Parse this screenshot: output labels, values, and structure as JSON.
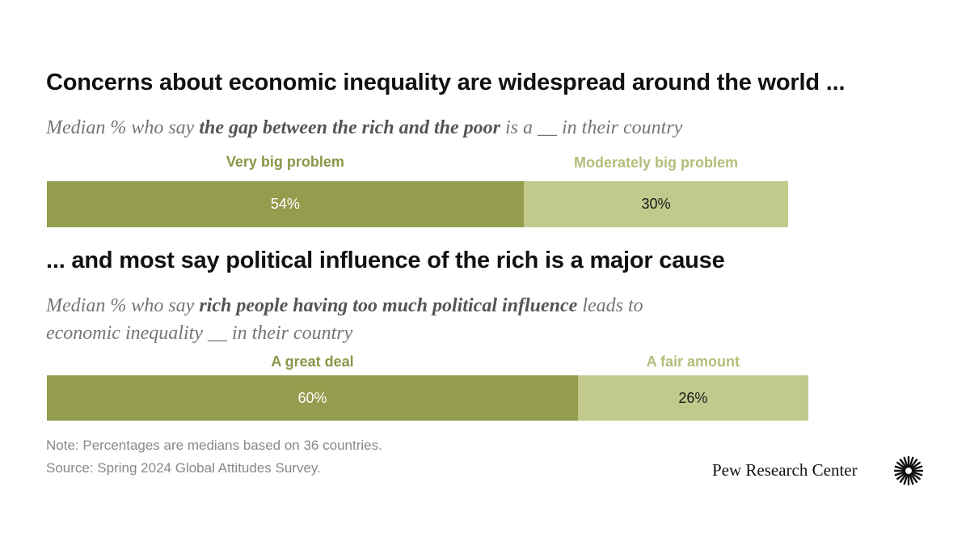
{
  "chart_data": [
    {
      "type": "bar",
      "orientation": "horizontal-stacked",
      "title": "Concerns about economic inequality are widespread around the world ...",
      "subtitle": {
        "pre": "Median % who say ",
        "bold": "the gap between the rich and the poor",
        "post": " is a __ in their country"
      },
      "series": [
        {
          "name": "Very big problem",
          "value": 54,
          "label": "54%"
        },
        {
          "name": "Moderately big problem",
          "value": 30,
          "label": "30%"
        }
      ]
    },
    {
      "type": "bar",
      "orientation": "horizontal-stacked",
      "title": "... and most say political influence of the rich is a major cause",
      "subtitle": {
        "pre": "Median % who say ",
        "bold": "rich people having too much political influence",
        "post1": " leads to",
        "line2": "economic inequality __ in their country"
      },
      "series": [
        {
          "name": "A great deal",
          "value": 60,
          "label": "60%"
        },
        {
          "name": "A fair amount",
          "value": 26,
          "label": "26%"
        }
      ]
    }
  ],
  "colors": {
    "dark": "#949c4d",
    "light": "#c2c98c",
    "dark_text": "#8c9447",
    "light_text": "#b5bd7a"
  },
  "note": "Note: Percentages are medians based on 36 countries.",
  "source": "Source: Spring 2024 Global Attitudes Survey.",
  "logo": {
    "text": "Pew Research Center",
    "icon": "pew-sunburst-icon"
  }
}
